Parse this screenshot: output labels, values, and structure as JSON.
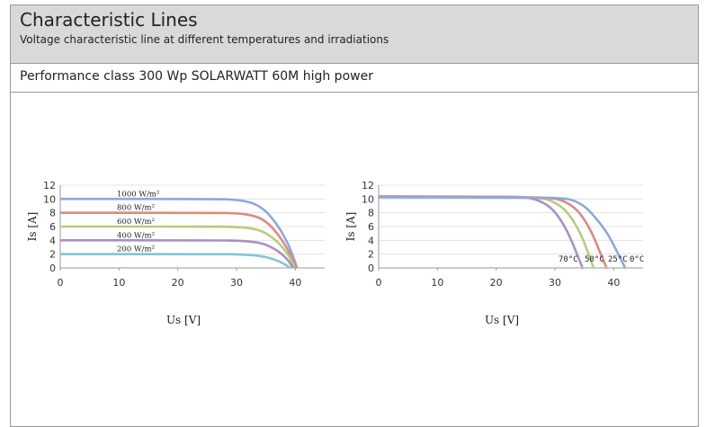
{
  "header": {
    "title": "Characteristic Lines",
    "subtitle": "Voltage characteristic line at different temperatures and irradiations"
  },
  "performance_label": "Performance class 300 Wp SOLARWATT 60M high power",
  "chart_data": [
    {
      "type": "line",
      "xlabel": "Us [V]",
      "ylabel": "Is [A]",
      "xlim": [
        0,
        45
      ],
      "ylim": [
        0,
        12
      ],
      "xticks": [
        0,
        10,
        20,
        30,
        40
      ],
      "yticks": [
        0,
        2,
        4,
        6,
        8,
        10,
        12
      ],
      "grid": true,
      "series": [
        {
          "name": "1000 W/m²",
          "color": "#8ea8d8",
          "x": [
            0,
            26,
            30,
            33,
            35,
            37,
            38.5,
            39.5,
            40.3
          ],
          "y": [
            10,
            10,
            9.9,
            9.4,
            8.3,
            6.2,
            4,
            2,
            0
          ]
        },
        {
          "name": "800 W/m²",
          "color": "#d98a80",
          "x": [
            0,
            26,
            30,
            33,
            35,
            37,
            38.5,
            39.5,
            40.1
          ],
          "y": [
            8,
            8,
            7.95,
            7.6,
            6.8,
            5,
            3,
            1.4,
            0
          ]
        },
        {
          "name": "600 W/m²",
          "color": "#b7cc7e",
          "x": [
            0,
            26,
            30,
            33,
            35,
            37,
            38.5,
            39.4,
            39.9
          ],
          "y": [
            6,
            6,
            5.95,
            5.7,
            5.1,
            3.8,
            2.3,
            1,
            0
          ]
        },
        {
          "name": "400 W/m²",
          "color": "#a890c2",
          "x": [
            0,
            26,
            30,
            33,
            35,
            37,
            38.5,
            39.2,
            39.6
          ],
          "y": [
            4,
            4,
            3.95,
            3.8,
            3.4,
            2.5,
            1.4,
            0.6,
            0
          ]
        },
        {
          "name": "200 W/m²",
          "color": "#7ec6d6",
          "x": [
            0,
            26,
            30,
            33,
            35,
            37,
            38.3,
            39.1
          ],
          "y": [
            2,
            2,
            1.97,
            1.85,
            1.6,
            1.05,
            0.5,
            0
          ]
        }
      ]
    },
    {
      "type": "line",
      "xlabel": "Us [V]",
      "ylabel": "Is [A]",
      "xlim": [
        0,
        45
      ],
      "ylim": [
        0,
        12
      ],
      "xticks": [
        0,
        10,
        20,
        30,
        40
      ],
      "yticks": [
        0,
        2,
        4,
        6,
        8,
        10,
        12
      ],
      "grid": true,
      "series": [
        {
          "name": "70°C",
          "color": "#a890c2",
          "x": [
            0,
            22,
            25,
            27,
            29,
            30.5,
            32,
            33,
            34,
            34.7
          ],
          "y": [
            10.4,
            10.35,
            10.25,
            9.9,
            9,
            7.6,
            5.5,
            3.6,
            1.5,
            0
          ]
        },
        {
          "name": "50°C",
          "color": "#b7cc7e",
          "x": [
            0,
            24,
            27,
            29,
            31,
            32.5,
            34,
            35,
            35.9,
            36.6
          ],
          "y": [
            10.35,
            10.3,
            10.2,
            9.9,
            9,
            7.7,
            5.6,
            3.7,
            1.6,
            0
          ]
        },
        {
          "name": "25°C",
          "color": "#d98a80",
          "x": [
            0,
            26,
            29,
            31,
            33,
            34.5,
            36,
            37,
            38,
            38.8
          ],
          "y": [
            10.3,
            10.25,
            10.15,
            9.9,
            9,
            7.7,
            5.6,
            3.7,
            1.6,
            0
          ]
        },
        {
          "name": "0°C",
          "color": "#8ea8d8",
          "x": [
            0,
            28,
            31,
            33,
            35,
            36.5,
            38.5,
            39.8,
            41,
            42
          ],
          "y": [
            10.25,
            10.2,
            10.1,
            9.9,
            9,
            7.7,
            5.6,
            3.7,
            1.6,
            0
          ]
        }
      ]
    }
  ]
}
